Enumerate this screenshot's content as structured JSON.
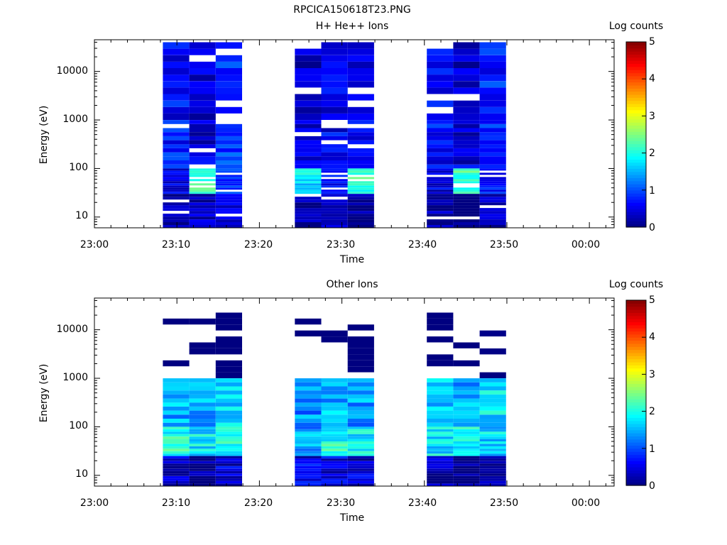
{
  "figure_title": "RPCICA150618T23.PNG",
  "panels": [
    {
      "title": "H+ He++ Ions",
      "xlabel": "Time",
      "ylabel": "Energy (eV)",
      "cbar_label": "Log counts"
    },
    {
      "title": "Other Ions",
      "xlabel": "Time",
      "ylabel": "Energy (eV)",
      "cbar_label": "Log counts"
    }
  ],
  "x_ticks": [
    "23:00",
    "23:10",
    "23:20",
    "23:30",
    "23:40",
    "23:50",
    "00:00"
  ],
  "y_ticks": [
    "10",
    "100",
    "1000",
    "10000"
  ],
  "cbar_ticks": [
    "0",
    "1",
    "2",
    "3",
    "4",
    "5"
  ],
  "chart_data": [
    {
      "type": "heatmap",
      "title": "H+ He++ Ions",
      "xlabel": "Time",
      "ylabel": "Energy (eV)",
      "colorbar_label": "Log counts",
      "colorbar_range": [
        0,
        5
      ],
      "colormap": "jet",
      "y_scale": "log",
      "xlim": [
        "23:00",
        "00:03"
      ],
      "ylim": [
        6,
        45000
      ],
      "time_bins": [
        {
          "start": "23:08.3",
          "end": "23:11.5"
        },
        {
          "start": "23:11.5",
          "end": "23:14.7"
        },
        {
          "start": "23:14.7",
          "end": "23:17.9"
        },
        {
          "start": "23:24.3",
          "end": "23:27.5"
        },
        {
          "start": "23:27.5",
          "end": "23:30.7"
        },
        {
          "start": "23:30.7",
          "end": "23:33.9"
        },
        {
          "start": "23:40.3",
          "end": "23:43.5"
        },
        {
          "start": "23:43.5",
          "end": "23:46.7"
        },
        {
          "start": "23:46.7",
          "end": "23:49.9"
        }
      ],
      "approx_log_counts_by_energy": [
        {
          "energy_range": [
            1000,
            40000
          ],
          "values": [
            0.7,
            0.4,
            0.9,
            0.3,
            0.5,
            0.4,
            0.6,
            0.4,
            0.8
          ]
        },
        {
          "energy_range": [
            100,
            1000
          ],
          "values": [
            0.8,
            0.5,
            1.0,
            0.4,
            0.6,
            0.6,
            0.7,
            0.5,
            0.9
          ]
        },
        {
          "energy_range": [
            30,
            100
          ],
          "values": [
            0.5,
            2.2,
            0.8,
            1.8,
            0.6,
            2.2,
            0.5,
            2.2,
            0.7
          ]
        },
        {
          "energy_range": [
            6,
            30
          ],
          "values": [
            0.2,
            0.3,
            0.4,
            0.2,
            0.3,
            0.2,
            0.2,
            0.1,
            0.4
          ]
        }
      ]
    },
    {
      "type": "heatmap",
      "title": "Other Ions",
      "xlabel": "Time",
      "ylabel": "Energy (eV)",
      "colorbar_label": "Log counts",
      "colorbar_range": [
        0,
        5
      ],
      "colormap": "jet",
      "y_scale": "log",
      "xlim": [
        "23:00",
        "00:03"
      ],
      "ylim": [
        6,
        45000
      ],
      "time_bins": [
        {
          "start": "23:08.3",
          "end": "23:11.5"
        },
        {
          "start": "23:11.5",
          "end": "23:14.7"
        },
        {
          "start": "23:14.7",
          "end": "23:17.9"
        },
        {
          "start": "23:24.3",
          "end": "23:27.5"
        },
        {
          "start": "23:27.5",
          "end": "23:30.7"
        },
        {
          "start": "23:30.7",
          "end": "23:33.9"
        },
        {
          "start": "23:40.3",
          "end": "23:43.5"
        },
        {
          "start": "23:43.5",
          "end": "23:46.7"
        },
        {
          "start": "23:46.7",
          "end": "23:49.9"
        }
      ],
      "approx_log_counts_by_energy": [
        {
          "energy_range": [
            1000,
            30000
          ],
          "values": [
            0.1,
            0.1,
            0.1,
            0.1,
            0.1,
            0.1,
            0.2,
            0.1,
            0.2
          ]
        },
        {
          "energy_range": [
            100,
            1000
          ],
          "values": [
            1.5,
            1.4,
            1.6,
            1.3,
            1.5,
            1.4,
            1.7,
            1.4,
            1.8
          ]
        },
        {
          "energy_range": [
            25,
            100
          ],
          "values": [
            2.0,
            1.8,
            1.9,
            1.4,
            2.0,
            1.8,
            1.8,
            1.9,
            1.7
          ]
        },
        {
          "energy_range": [
            6,
            25
          ],
          "values": [
            0.3,
            0.0,
            0.4,
            0.5,
            0.5,
            0.4,
            0.2,
            0.0,
            0.2
          ]
        }
      ]
    }
  ]
}
